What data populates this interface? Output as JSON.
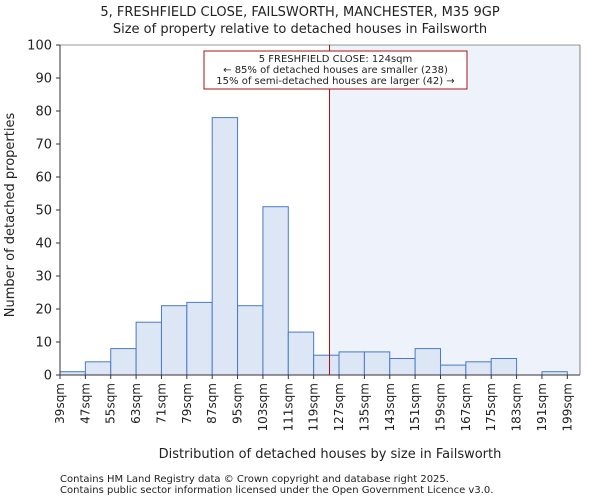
{
  "chart_data": {
    "type": "bar",
    "title_line1": "5, FRESHFIELD CLOSE, FAILSWORTH, MANCHESTER, M35 9GP",
    "title_line2": "Size of property relative to detached houses in Failsworth",
    "xlabel": "Distribution of detached houses by size in Failsworth",
    "ylabel": "Number of detached properties",
    "ylim": [
      0,
      100
    ],
    "yticks": [
      0,
      10,
      20,
      30,
      40,
      50,
      60,
      70,
      80,
      90,
      100
    ],
    "xlim": [
      39,
      203
    ],
    "bin_width": 8,
    "xtick_labels": [
      "39sqm",
      "47sqm",
      "55sqm",
      "63sqm",
      "71sqm",
      "79sqm",
      "87sqm",
      "95sqm",
      "103sqm",
      "111sqm",
      "119sqm",
      "127sqm",
      "135sqm",
      "143sqm",
      "151sqm",
      "159sqm",
      "167sqm",
      "175sqm",
      "183sqm",
      "191sqm",
      "199sqm"
    ],
    "bin_starts": [
      39,
      47,
      55,
      63,
      71,
      79,
      87,
      95,
      103,
      111,
      119,
      127,
      135,
      143,
      151,
      159,
      167,
      175,
      183,
      191,
      199
    ],
    "values": [
      1,
      4,
      8,
      16,
      21,
      22,
      78,
      21,
      51,
      13,
      6,
      7,
      7,
      5,
      8,
      3,
      4,
      5,
      0,
      1
    ],
    "subject_value": 124,
    "annotation": {
      "line1": "5 FRESHFIELD CLOSE: 124sqm",
      "line2": "← 85% of detached houses are smaller (238)",
      "line3": "15% of semi-detached houses are larger (42) →"
    },
    "colors": {
      "bar_fill": "#dce6f5",
      "bar_edge": "#4a7ac8",
      "marker": "#aa1111",
      "highlight": "#eef2fb",
      "axis": "#333333"
    }
  },
  "footer": {
    "line1": "Contains HM Land Registry data © Crown copyright and database right 2025.",
    "line2": "Contains public sector information licensed under the Open Government Licence v3.0."
  }
}
